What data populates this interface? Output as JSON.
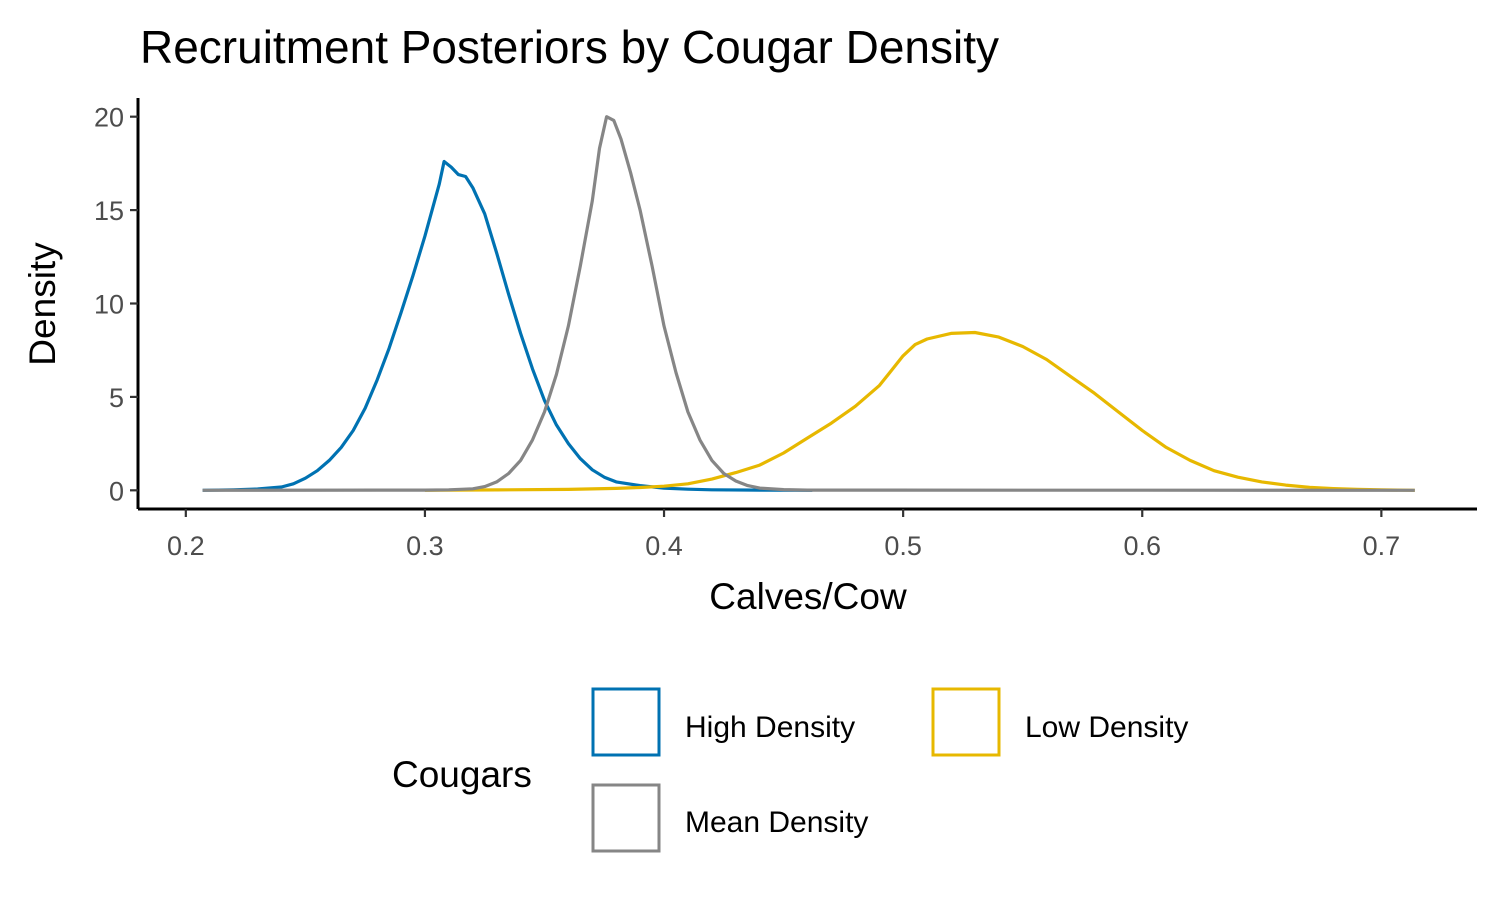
{
  "chart_data": {
    "type": "line",
    "title": "Recruitment Posteriors by Cougar Density",
    "xlabel": "Calves/Cow",
    "ylabel": "Density",
    "xlim": [
      0.18,
      0.74
    ],
    "ylim": [
      -1.0,
      21.0
    ],
    "xticks": [
      0.2,
      0.3,
      0.4,
      0.5,
      0.6,
      0.7
    ],
    "xtick_labels": [
      "0.2",
      "0.3",
      "0.4",
      "0.5",
      "0.6",
      "0.7"
    ],
    "yticks": [
      0,
      5,
      10,
      15,
      20
    ],
    "ytick_labels": [
      "0",
      "5",
      "10",
      "15",
      "20"
    ],
    "grid": false,
    "legend": {
      "title": "Cougars",
      "position": "bottom"
    },
    "series": [
      {
        "name": "High Density",
        "color": "#0072B2",
        "points": [
          [
            0.207,
            0.0
          ],
          [
            0.22,
            0.03
          ],
          [
            0.23,
            0.07
          ],
          [
            0.24,
            0.18
          ],
          [
            0.245,
            0.35
          ],
          [
            0.25,
            0.65
          ],
          [
            0.255,
            1.05
          ],
          [
            0.26,
            1.6
          ],
          [
            0.265,
            2.3
          ],
          [
            0.27,
            3.2
          ],
          [
            0.275,
            4.4
          ],
          [
            0.28,
            5.9
          ],
          [
            0.285,
            7.6
          ],
          [
            0.29,
            9.5
          ],
          [
            0.295,
            11.5
          ],
          [
            0.3,
            13.6
          ],
          [
            0.303,
            15.0
          ],
          [
            0.306,
            16.4
          ],
          [
            0.308,
            17.6
          ],
          [
            0.311,
            17.3
          ],
          [
            0.314,
            16.9
          ],
          [
            0.317,
            16.8
          ],
          [
            0.32,
            16.2
          ],
          [
            0.325,
            14.8
          ],
          [
            0.33,
            12.7
          ],
          [
            0.335,
            10.5
          ],
          [
            0.34,
            8.4
          ],
          [
            0.345,
            6.5
          ],
          [
            0.35,
            4.8
          ],
          [
            0.355,
            3.5
          ],
          [
            0.36,
            2.5
          ],
          [
            0.365,
            1.7
          ],
          [
            0.37,
            1.1
          ],
          [
            0.375,
            0.7
          ],
          [
            0.38,
            0.45
          ],
          [
            0.39,
            0.25
          ],
          [
            0.4,
            0.12
          ],
          [
            0.41,
            0.06
          ],
          [
            0.42,
            0.03
          ],
          [
            0.44,
            0.01
          ],
          [
            0.462,
            0.0
          ]
        ]
      },
      {
        "name": "Low Density",
        "color": "#E7B800",
        "points": [
          [
            0.3,
            0.0
          ],
          [
            0.33,
            0.02
          ],
          [
            0.36,
            0.05
          ],
          [
            0.38,
            0.1
          ],
          [
            0.39,
            0.15
          ],
          [
            0.4,
            0.22
          ],
          [
            0.41,
            0.35
          ],
          [
            0.42,
            0.6
          ],
          [
            0.43,
            0.95
          ],
          [
            0.44,
            1.35
          ],
          [
            0.45,
            2.0
          ],
          [
            0.46,
            2.8
          ],
          [
            0.47,
            3.6
          ],
          [
            0.48,
            4.5
          ],
          [
            0.49,
            5.6
          ],
          [
            0.495,
            6.4
          ],
          [
            0.5,
            7.2
          ],
          [
            0.505,
            7.8
          ],
          [
            0.51,
            8.1
          ],
          [
            0.52,
            8.4
          ],
          [
            0.53,
            8.45
          ],
          [
            0.54,
            8.2
          ],
          [
            0.55,
            7.7
          ],
          [
            0.56,
            7.0
          ],
          [
            0.57,
            6.1
          ],
          [
            0.58,
            5.2
          ],
          [
            0.59,
            4.2
          ],
          [
            0.6,
            3.2
          ],
          [
            0.61,
            2.3
          ],
          [
            0.62,
            1.6
          ],
          [
            0.63,
            1.05
          ],
          [
            0.64,
            0.7
          ],
          [
            0.65,
            0.45
          ],
          [
            0.66,
            0.28
          ],
          [
            0.67,
            0.16
          ],
          [
            0.68,
            0.09
          ],
          [
            0.69,
            0.05
          ],
          [
            0.7,
            0.02
          ],
          [
            0.714,
            0.0
          ]
        ]
      },
      {
        "name": "Mean Density",
        "color": "#868686",
        "points": [
          [
            0.207,
            0.0
          ],
          [
            0.3,
            0.01
          ],
          [
            0.31,
            0.03
          ],
          [
            0.32,
            0.08
          ],
          [
            0.325,
            0.2
          ],
          [
            0.33,
            0.45
          ],
          [
            0.335,
            0.9
          ],
          [
            0.34,
            1.6
          ],
          [
            0.345,
            2.7
          ],
          [
            0.35,
            4.2
          ],
          [
            0.355,
            6.2
          ],
          [
            0.36,
            8.8
          ],
          [
            0.365,
            12.0
          ],
          [
            0.37,
            15.5
          ],
          [
            0.373,
            18.3
          ],
          [
            0.376,
            20.0
          ],
          [
            0.379,
            19.8
          ],
          [
            0.382,
            18.8
          ],
          [
            0.386,
            17.0
          ],
          [
            0.39,
            15.0
          ],
          [
            0.395,
            12.0
          ],
          [
            0.4,
            8.8
          ],
          [
            0.405,
            6.3
          ],
          [
            0.41,
            4.2
          ],
          [
            0.415,
            2.7
          ],
          [
            0.42,
            1.6
          ],
          [
            0.425,
            0.9
          ],
          [
            0.43,
            0.5
          ],
          [
            0.435,
            0.25
          ],
          [
            0.44,
            0.12
          ],
          [
            0.45,
            0.04
          ],
          [
            0.46,
            0.01
          ],
          [
            0.714,
            0.0
          ]
        ]
      }
    ]
  }
}
